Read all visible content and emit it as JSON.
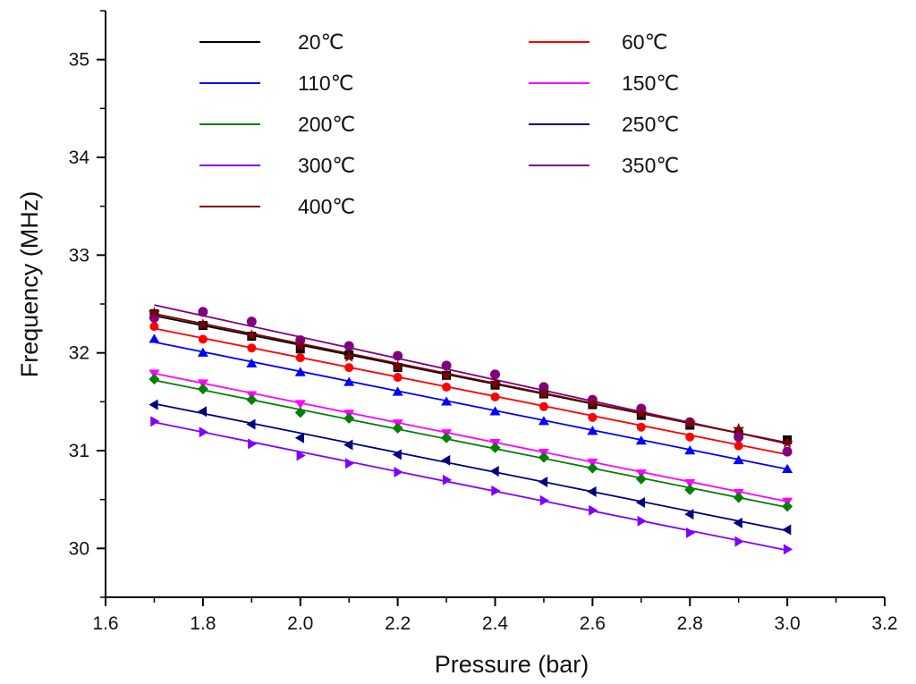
{
  "chart_data": {
    "type": "scatter",
    "title": "",
    "xlabel": "Pressure (bar)",
    "ylabel": "Frequency (MHz)",
    "xlim": [
      1.6,
      3.2
    ],
    "ylim": [
      29.5,
      35.5
    ],
    "x_ticks": [
      "1.6",
      "1.8",
      "2.0",
      "2.2",
      "2.4",
      "2.6",
      "2.8",
      "3.0",
      "3.2"
    ],
    "y_ticks": [
      "30",
      "31",
      "32",
      "33",
      "34",
      "35"
    ],
    "grid": false,
    "legend_position": "top",
    "x": [
      1.7,
      1.8,
      1.9,
      2.0,
      2.1,
      2.2,
      2.3,
      2.4,
      2.5,
      2.6,
      2.7,
      2.8,
      2.9,
      3.0
    ],
    "series": [
      {
        "name": "20℃",
        "color": "#000000",
        "marker": "square",
        "fit": [
          32.38,
          31.08
        ],
        "values": [
          32.4,
          32.28,
          32.17,
          32.04,
          31.98,
          31.85,
          31.77,
          31.67,
          31.58,
          31.47,
          31.36,
          31.26,
          31.17,
          31.11
        ]
      },
      {
        "name": "60℃",
        "color": "#ff0000",
        "marker": "circle",
        "fit": [
          32.25,
          30.96
        ],
        "values": [
          32.27,
          32.14,
          32.05,
          31.95,
          31.85,
          31.75,
          31.65,
          31.55,
          31.45,
          31.34,
          31.24,
          31.14,
          31.05,
          30.99
        ]
      },
      {
        "name": "110℃",
        "color": "#0000ff",
        "marker": "triangle-up",
        "fit": [
          32.11,
          30.81
        ],
        "values": [
          32.14,
          32.0,
          31.89,
          31.8,
          31.7,
          31.6,
          31.5,
          31.4,
          31.3,
          31.2,
          31.1,
          31.0,
          30.9,
          30.81
        ]
      },
      {
        "name": "150℃",
        "color": "#ff00ff",
        "marker": "triangle-down",
        "fit": [
          31.79,
          30.48
        ],
        "values": [
          31.79,
          31.69,
          31.57,
          31.48,
          31.38,
          31.28,
          31.18,
          31.08,
          30.98,
          30.88,
          30.77,
          30.67,
          30.57,
          30.48
        ]
      },
      {
        "name": "200℃",
        "color": "#008000",
        "marker": "diamond",
        "fit": [
          31.72,
          30.42
        ],
        "values": [
          31.73,
          31.63,
          31.52,
          31.39,
          31.33,
          31.23,
          31.13,
          31.03,
          30.93,
          30.82,
          30.71,
          30.6,
          30.52,
          30.43
        ]
      },
      {
        "name": "250℃",
        "color": "#000080",
        "marker": "triangle-left",
        "fit": [
          31.48,
          30.18
        ],
        "values": [
          31.47,
          31.4,
          31.27,
          31.13,
          31.06,
          30.96,
          30.9,
          30.79,
          30.68,
          30.58,
          30.47,
          30.35,
          30.26,
          30.19
        ]
      },
      {
        "name": "300℃",
        "color": "#8000ff",
        "marker": "triangle-right",
        "fit": [
          31.29,
          29.98
        ],
        "values": [
          31.3,
          31.19,
          31.07,
          30.95,
          30.87,
          30.78,
          30.7,
          30.59,
          30.49,
          30.39,
          30.28,
          30.16,
          30.07,
          29.99
        ]
      },
      {
        "name": "350℃",
        "color": "#800080",
        "marker": "hexagon",
        "fit": [
          32.49,
          31.07
        ],
        "values": [
          32.36,
          32.42,
          32.32,
          32.13,
          32.07,
          31.97,
          31.87,
          31.78,
          31.65,
          31.52,
          31.43,
          31.29,
          31.14,
          30.99
        ]
      },
      {
        "name": "400℃",
        "color": "#800000",
        "marker": "star",
        "fit": [
          32.4,
          31.08
        ],
        "values": [
          32.41,
          32.29,
          32.18,
          32.07,
          31.96,
          31.86,
          31.77,
          31.68,
          31.58,
          31.48,
          31.38,
          31.28,
          31.22,
          31.08
        ]
      }
    ]
  }
}
